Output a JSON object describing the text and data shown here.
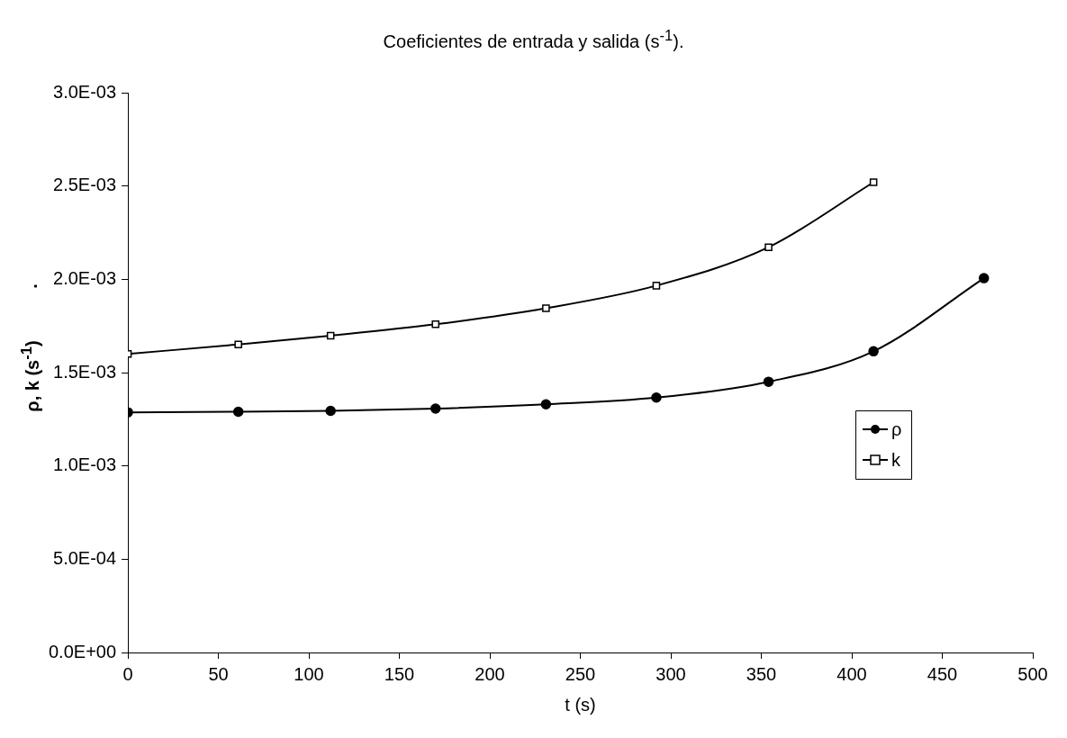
{
  "chart_data": {
    "type": "line",
    "title": "Coeficientes de entrada y salida (s$^{-1}$).",
    "xlabel": "t (s)",
    "ylabel": "ρ, k (s$^{-1}$)",
    "annotations": [
      "."
    ],
    "x": [
      0,
      61,
      112,
      170,
      231,
      292,
      354,
      412,
      473
    ],
    "series": [
      {
        "name": "ρ",
        "color": "#000000",
        "marker": "circle",
        "values": [
          0.001287,
          0.00129,
          0.001295,
          0.001307,
          0.00133,
          0.001366,
          0.001451,
          0.001614,
          0.002006
        ]
      },
      {
        "name": "k",
        "color": "#000000",
        "marker": "square",
        "x": [
          0,
          61,
          112,
          170,
          231,
          292,
          354,
          412
        ],
        "values": [
          0.0016,
          0.001651,
          0.001698,
          0.001759,
          0.001845,
          0.001966,
          0.002172,
          0.00252
        ]
      }
    ],
    "xlim": [
      0,
      500
    ],
    "xticks": [
      0,
      50,
      100,
      150,
      200,
      250,
      300,
      350,
      400,
      450,
      500
    ],
    "ylim": [
      0,
      0.003
    ],
    "yticks": [
      {
        "value": 0,
        "label": "0.0E+00"
      },
      {
        "value": 0.0005,
        "label": "5.0E-04"
      },
      {
        "value": 0.001,
        "label": "1.0E-03"
      },
      {
        "value": 0.0015,
        "label": "1.5E-03"
      },
      {
        "value": 0.002,
        "label": "2.0E-03"
      },
      {
        "value": 0.0025,
        "label": "2.5E-03"
      },
      {
        "value": 0.003,
        "label": "3.0E-03"
      }
    ],
    "grid": false,
    "legend": "right"
  }
}
